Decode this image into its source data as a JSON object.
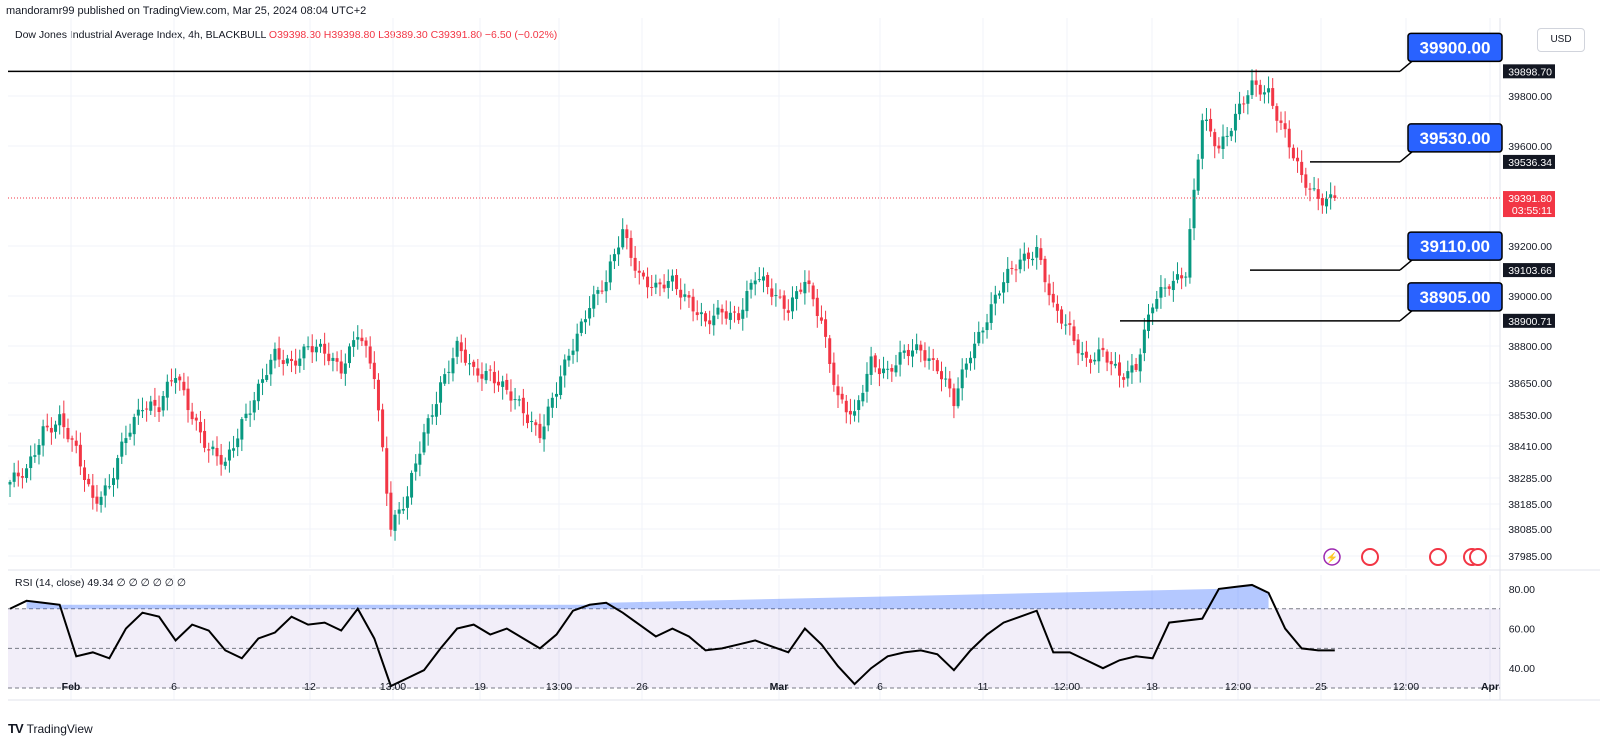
{
  "header": {
    "publisher": "mandoramr99 published on TradingView.com, Mar 25, 2024 08:04 UTC+2"
  },
  "legend": {
    "symbol": "Dow Jones Industrial Average Index, 4h, BLACKBULL",
    "ohlc": "O39398.30 H39398.80 L39389.30 C39391.80 −6.50 (−0.02%)"
  },
  "currency": "USD",
  "rsi_legend": "RSI (14, close)  49.34  ∅ ∅ ∅ ∅ ∅ ∅",
  "footer": {
    "brand": "TradingView"
  },
  "colors": {
    "up": "#089981",
    "down": "#f23645",
    "callout": "#2962ff",
    "rsi_line": "#000000",
    "rsi_band": "#7e57c2"
  },
  "chart_data": [
    {
      "type": "candlestick",
      "title": "Dow Jones Industrial Average Index, 4h, BLACKBULL",
      "ylim": [
        37950,
        39980
      ],
      "y_ticks": [
        "39800.00",
        "39600.00",
        "39200.00",
        "39000.00",
        "38800.00",
        "38650.00",
        "38530.00",
        "38410.00",
        "38285.00",
        "38185.00",
        "38085.00",
        "37985.00"
      ],
      "x_ticks": [
        "Feb",
        "6",
        "12",
        "13:00",
        "19",
        "13:00",
        "26",
        "Mar",
        "6",
        "11",
        "12:00",
        "18",
        "12:00",
        "25",
        "12:00",
        "Apr"
      ],
      "last_price": {
        "value": "39391.80",
        "countdown": "03:55:11"
      },
      "levels": [
        {
          "callout": "39900.00",
          "axis_label": "39898.70",
          "value": 39898.7
        },
        {
          "callout": "39530.00",
          "axis_label": "39536.34",
          "value": 39536.34
        },
        {
          "callout": "39110.00",
          "axis_label": "39103.66",
          "value": 39103.66
        },
        {
          "callout": "38905.00",
          "axis_label": "38900.71",
          "value": 38900.71
        }
      ],
      "close_path": [
        [
          0,
          38270
        ],
        [
          4,
          38300
        ],
        [
          8,
          38480
        ],
        [
          12,
          38510
        ],
        [
          16,
          38380
        ],
        [
          20,
          38210
        ],
        [
          24,
          38250
        ],
        [
          28,
          38440
        ],
        [
          32,
          38580
        ],
        [
          36,
          38560
        ],
        [
          40,
          38680
        ],
        [
          44,
          38540
        ],
        [
          48,
          38390
        ],
        [
          52,
          38330
        ],
        [
          56,
          38510
        ],
        [
          60,
          38620
        ],
        [
          64,
          38760
        ],
        [
          68,
          38740
        ],
        [
          72,
          38790
        ],
        [
          76,
          38770
        ],
        [
          80,
          38720
        ],
        [
          84,
          38850
        ],
        [
          88,
          38680
        ],
        [
          92,
          38110
        ],
        [
          96,
          38210
        ],
        [
          100,
          38450
        ],
        [
          104,
          38650
        ],
        [
          108,
          38790
        ],
        [
          112,
          38690
        ],
        [
          116,
          38700
        ],
        [
          120,
          38610
        ],
        [
          124,
          38540
        ],
        [
          128,
          38470
        ],
        [
          132,
          38620
        ],
        [
          136,
          38800
        ],
        [
          140,
          38980
        ],
        [
          144,
          39050
        ],
        [
          148,
          39260
        ],
        [
          152,
          39090
        ],
        [
          156,
          39020
        ],
        [
          160,
          39060
        ],
        [
          164,
          38990
        ],
        [
          168,
          38880
        ],
        [
          172,
          38940
        ],
        [
          176,
          38930
        ],
        [
          180,
          39070
        ],
        [
          184,
          39020
        ],
        [
          188,
          38960
        ],
        [
          192,
          39050
        ],
        [
          196,
          38900
        ],
        [
          200,
          38600
        ],
        [
          204,
          38510
        ],
        [
          208,
          38740
        ],
        [
          212,
          38700
        ],
        [
          216,
          38760
        ],
        [
          220,
          38790
        ],
        [
          224,
          38720
        ],
        [
          228,
          38570
        ],
        [
          232,
          38780
        ],
        [
          236,
          38920
        ],
        [
          240,
          39050
        ],
        [
          244,
          39150
        ],
        [
          248,
          39190
        ],
        [
          252,
          38940
        ],
        [
          256,
          38870
        ],
        [
          260,
          38740
        ],
        [
          264,
          38760
        ],
        [
          268,
          38690
        ],
        [
          272,
          38720
        ],
        [
          276,
          38960
        ],
        [
          280,
          39060
        ],
        [
          284,
          39100
        ],
        [
          288,
          39700
        ],
        [
          292,
          39600
        ],
        [
          296,
          39720
        ],
        [
          300,
          39830
        ],
        [
          304,
          39820
        ],
        [
          308,
          39650
        ],
        [
          312,
          39460
        ],
        [
          316,
          39400
        ],
        [
          320,
          39392
        ]
      ]
    },
    {
      "type": "line",
      "title": "RSI (14, close)",
      "last_value": 49.34,
      "ylim": [
        28,
        85
      ],
      "y_ticks": [
        "80.00",
        "60.00",
        "40.00"
      ],
      "bands": [
        30,
        50,
        70
      ],
      "x": [
        0,
        4,
        8,
        12,
        16,
        20,
        24,
        28,
        32,
        36,
        40,
        44,
        48,
        52,
        56,
        60,
        64,
        68,
        72,
        76,
        80,
        84,
        88,
        92,
        96,
        100,
        104,
        108,
        112,
        116,
        120,
        124,
        128,
        132,
        136,
        140,
        144,
        148,
        152,
        156,
        160,
        164,
        168,
        172,
        176,
        180,
        184,
        188,
        192,
        196,
        200,
        204,
        208,
        212,
        216,
        220,
        224,
        228,
        232,
        236,
        240,
        244,
        248,
        252,
        256,
        260,
        264,
        268,
        272,
        276,
        280,
        284,
        288,
        292,
        296,
        300,
        304,
        308,
        312,
        316,
        320
      ],
      "values": [
        70,
        74,
        73,
        72,
        46,
        48,
        45,
        60,
        68,
        66,
        54,
        62,
        59,
        49,
        45,
        55,
        58,
        66,
        62,
        63,
        59,
        70,
        55,
        31,
        35,
        39,
        50,
        60,
        62,
        57,
        60,
        55,
        50,
        57,
        69,
        72,
        73,
        68,
        62,
        56,
        60,
        56,
        49,
        50,
        52,
        54,
        51,
        48,
        60,
        52,
        41,
        32,
        40,
        46,
        48,
        49,
        47,
        39,
        49,
        57,
        63,
        66,
        69,
        48,
        48,
        44,
        40,
        44,
        46,
        45,
        63,
        64,
        65,
        80,
        81,
        82,
        78,
        60,
        50,
        49,
        49
      ]
    }
  ]
}
